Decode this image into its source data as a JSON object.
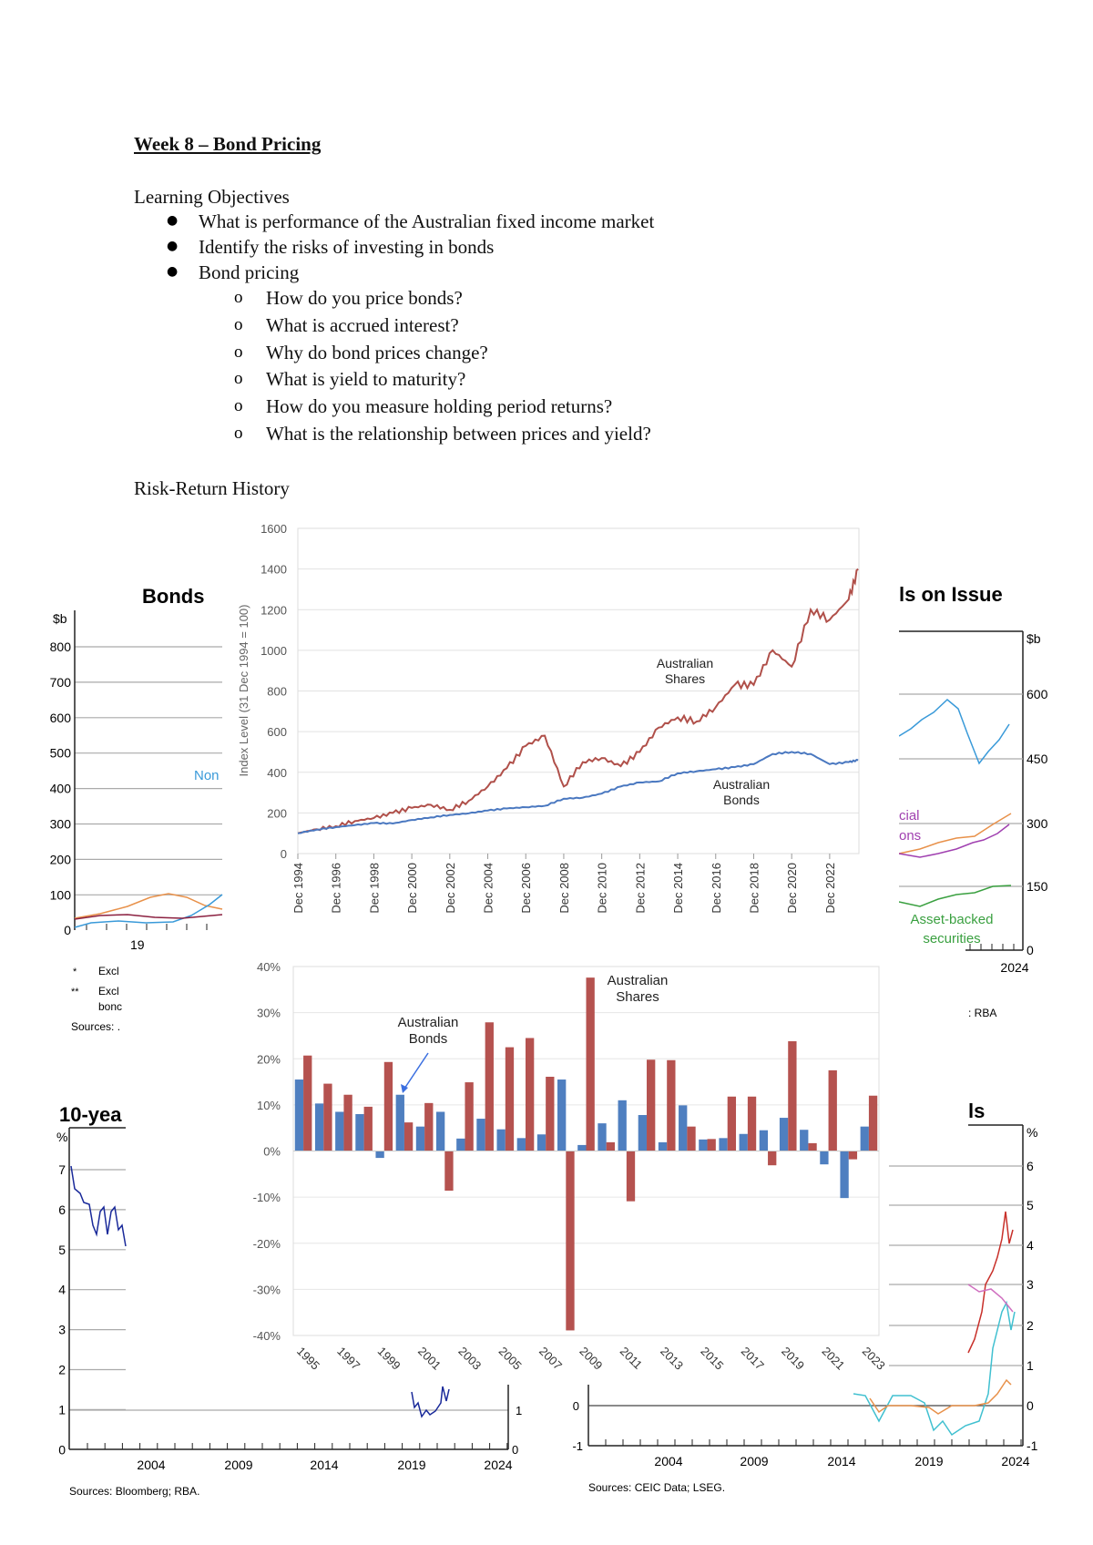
{
  "document": {
    "title": "Week 8 – Bond Pricing",
    "objectives_heading": "Learning Objectives",
    "objectives": [
      "What is performance of the Australian fixed income market",
      "Identify the risks of investing in bonds",
      "Bond pricing"
    ],
    "sub_objectives": [
      "How do you price bonds?",
      "What is accrued interest?",
      "Why do bond prices change?",
      "What is yield to maturity?",
      "How do you measure holding period returns?",
      "What is the relationship between prices and yield?"
    ],
    "section_heading": "Risk-Return History",
    "sub_bullet_glyph": "o"
  },
  "background_charts": {
    "bonds_on_issue_left": {
      "title_fragment": "Bonds",
      "unit": "$b",
      "y_ticks": [
        "800",
        "700",
        "600",
        "500",
        "400",
        "300",
        "200",
        "100",
        "0"
      ],
      "x_tick_fragment": "19",
      "series_label_fragment": "Non",
      "notes": [
        "*",
        "Excl",
        "**",
        "Excl",
        "bonc",
        "Sources: ."
      ],
      "colors": {
        "orange": "#e8914a",
        "blue": "#3a9ad9",
        "maroon": "#8b2040",
        "pink": "#d070a0"
      }
    },
    "bonds_on_issue_right": {
      "title_fragment": "ls on Issue",
      "unit": "$b",
      "y_ticks": [
        "600",
        "450",
        "300",
        "150",
        "0"
      ],
      "x_tick": "2024",
      "labels": [
        "cial",
        "ons",
        "Asset-backed",
        "securities"
      ],
      "source_fragment": ": RBA",
      "colors": {
        "blue": "#3a9ad9",
        "orange": "#e8914a",
        "purple": "#a040b0",
        "green": "#3aa040"
      }
    },
    "ten_year_yields": {
      "title_fragment": "10-yea",
      "unit": "%",
      "y_ticks": [
        "7",
        "6",
        "5",
        "4",
        "3",
        "2",
        "1",
        "0"
      ],
      "right_ticks": [
        "1",
        "0"
      ],
      "x_ticks": [
        "2004",
        "2009",
        "2014",
        "2019",
        "2024"
      ],
      "source": "Sources: Bloomberg; RBA.",
      "color": "#1a2a9a"
    },
    "yields_right": {
      "title_fragment": "ls",
      "unit": "%",
      "left_ticks": [
        "0",
        "-1"
      ],
      "right_ticks": [
        "6",
        "5",
        "4",
        "3",
        "2",
        "1",
        "0",
        "-1"
      ],
      "x_ticks": [
        "2004",
        "2009",
        "2014",
        "2019",
        "2024"
      ],
      "source": "Sources: CEIC Data; LSEG.",
      "colors": {
        "red": "#c8302a",
        "pink": "#d070c0",
        "cyan": "#40c0d0",
        "orange": "#e8914a"
      }
    }
  },
  "chart_data": [
    {
      "type": "line",
      "title": "",
      "ylabel": "Index Level (31 Dec 1994 = 100)",
      "xlabel": "",
      "ylim": [
        0,
        1600
      ],
      "y_ticks": [
        "0",
        "200",
        "400",
        "600",
        "800",
        "1000",
        "1200",
        "1400",
        "1600"
      ],
      "x_ticks": [
        "Dec 1994",
        "Dec 1996",
        "Dec 1998",
        "Dec 2000",
        "Dec 2002",
        "Dec 2004",
        "Dec 2006",
        "Dec 2008",
        "Dec 2010",
        "Dec 2012",
        "Dec 2014",
        "Dec 2016",
        "Dec 2018",
        "Dec 2020",
        "Dec 2022"
      ],
      "grid": true,
      "x": [
        "Dec 1994",
        "Dec 1995",
        "Dec 1996",
        "Dec 1997",
        "Dec 1998",
        "Dec 1999",
        "Dec 2000",
        "Dec 2001",
        "Dec 2002",
        "Dec 2003",
        "Dec 2004",
        "Dec 2005",
        "Dec 2006",
        "Dec 2007",
        "Dec 2008",
        "Dec 2009",
        "Dec 2010",
        "Dec 2011",
        "Dec 2012",
        "Dec 2013",
        "Dec 2014",
        "Dec 2015",
        "Dec 2016",
        "Dec 2017",
        "Dec 2018",
        "Dec 2019",
        "Dec 2020",
        "Dec 2021",
        "Dec 2022",
        "Dec 2023",
        "Jun 2024"
      ],
      "series": [
        {
          "name": "Australian Shares",
          "label_lines": [
            "Australian",
            "Shares"
          ],
          "color": "#b0504a",
          "values": [
            100,
            120,
            135,
            160,
            175,
            200,
            225,
            240,
            215,
            260,
            330,
            420,
            530,
            580,
            330,
            450,
            470,
            430,
            500,
            620,
            670,
            650,
            720,
            830,
            830,
            1000,
            920,
            1200,
            1150,
            1250,
            1400
          ]
        },
        {
          "name": "Australian Bonds",
          "label_lines": [
            "Australian",
            "Bonds"
          ],
          "color": "#4a78c0",
          "values": [
            100,
            118,
            130,
            140,
            150,
            148,
            165,
            178,
            190,
            198,
            212,
            222,
            228,
            235,
            270,
            275,
            295,
            330,
            350,
            355,
            395,
            405,
            415,
            425,
            440,
            490,
            500,
            490,
            440,
            450,
            460
          ]
        }
      ]
    },
    {
      "type": "bar",
      "title": "",
      "xlabel": "",
      "ylabel": "",
      "ylim": [
        -40,
        40
      ],
      "y_ticks": [
        "40%",
        "30%",
        "20%",
        "10%",
        "0%",
        "-10%",
        "-20%",
        "-30%",
        "-40%"
      ],
      "grid": true,
      "categories": [
        "1995",
        "1996",
        "1997",
        "1998",
        "1999",
        "2000",
        "2001",
        "2002",
        "2003",
        "2004",
        "2005",
        "2006",
        "2007",
        "2008",
        "2009",
        "2010",
        "2011",
        "2012",
        "2013",
        "2014",
        "2015",
        "2016",
        "2017",
        "2018",
        "2019",
        "2020",
        "2021",
        "2022",
        "2023"
      ],
      "x_tick_labels": [
        "1995",
        "1997",
        "1999",
        "2001",
        "2003",
        "2005",
        "2007",
        "2009",
        "2011",
        "2013",
        "2015",
        "2017",
        "2019",
        "2021",
        "2023"
      ],
      "series": [
        {
          "name": "Australian Bonds",
          "label_lines": [
            "Australian",
            "Bonds"
          ],
          "color": "#4f7fc0",
          "values": [
            15.5,
            10.3,
            8.5,
            8.0,
            -1.5,
            12.2,
            5.3,
            8.5,
            2.7,
            7.0,
            4.7,
            2.8,
            3.6,
            15.5,
            1.3,
            6.0,
            11.0,
            7.8,
            1.9,
            9.9,
            2.5,
            2.8,
            3.7,
            4.5,
            7.2,
            4.6,
            -2.9,
            -10.2,
            5.3
          ]
        },
        {
          "name": "Australian Shares",
          "label_lines": [
            "Australian",
            "Shares"
          ],
          "color": "#b5524f",
          "values": [
            20.7,
            14.6,
            12.2,
            9.6,
            19.3,
            6.2,
            10.4,
            -8.6,
            14.9,
            27.9,
            22.5,
            24.5,
            16.1,
            -38.9,
            37.6,
            1.9,
            -10.9,
            19.8,
            19.7,
            5.3,
            2.6,
            11.8,
            11.8,
            -3.1,
            23.8,
            1.7,
            17.5,
            -1.8,
            12.0
          ]
        }
      ]
    }
  ]
}
